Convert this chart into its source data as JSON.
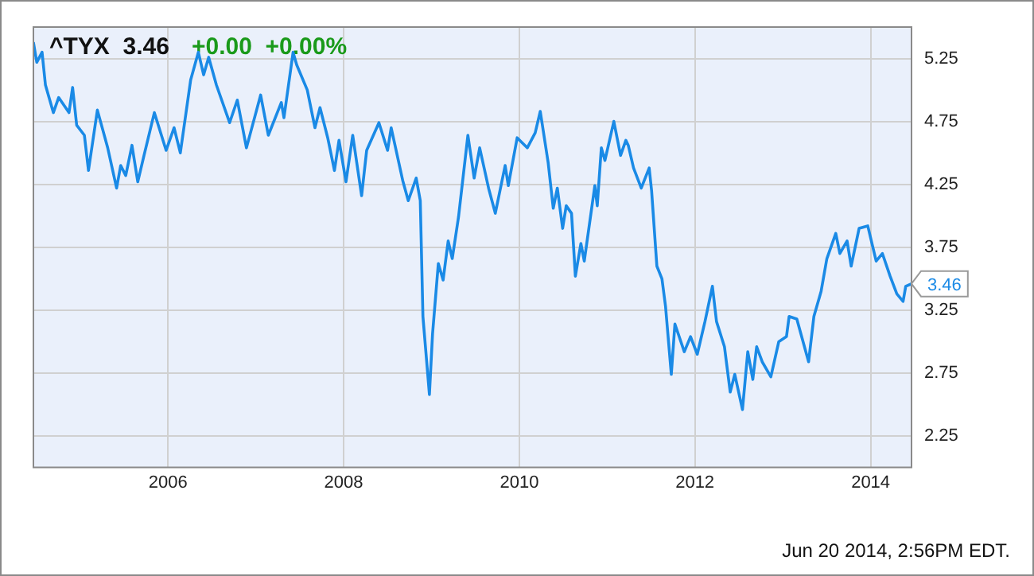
{
  "chart_data": {
    "type": "line",
    "title": "^TYX  3.46",
    "subtitle": "+0.00  +0.00%",
    "x": [
      "2004-06-20",
      "2004-07-04",
      "2004-07-26",
      "2004-08-09",
      "2004-09-11",
      "2004-10-03",
      "2004-11-15",
      "2004-11-30",
      "2004-12-17",
      "2005-01-18",
      "2005-02-04",
      "2005-03-13",
      "2005-04-25",
      "2005-06-01",
      "2005-06-18",
      "2005-07-09",
      "2005-08-04",
      "2005-08-28",
      "2005-09-23",
      "2005-11-05",
      "2005-12-24",
      "2006-01-26",
      "2006-02-21",
      "2006-04-05",
      "2006-05-07",
      "2006-05-29",
      "2006-06-19",
      "2006-07-21",
      "2006-09-14",
      "2006-10-16",
      "2006-11-23",
      "2007-01-21",
      "2007-02-22",
      "2007-04-17",
      "2007-04-28",
      "2007-06-05",
      "2007-06-20",
      "2007-08-03",
      "2007-09-04",
      "2007-09-25",
      "2007-10-27",
      "2007-11-24",
      "2007-12-13",
      "2008-01-11",
      "2008-02-08",
      "2008-03-16",
      "2008-04-06",
      "2008-05-27",
      "2008-07-02",
      "2008-07-17",
      "2008-09-03",
      "2008-09-26",
      "2008-10-29",
      "2008-11-15",
      "2008-11-26",
      "2008-12-23",
      "2009-01-05",
      "2009-01-29",
      "2009-02-18",
      "2009-03-11",
      "2009-03-28",
      "2009-04-23",
      "2009-06-01",
      "2009-06-27",
      "2009-07-20",
      "2009-08-26",
      "2009-09-23",
      "2009-11-03",
      "2009-11-16",
      "2009-12-23",
      "2010-02-03",
      "2010-03-08",
      "2010-03-29",
      "2010-05-01",
      "2010-05-22",
      "2010-06-08",
      "2010-06-30",
      "2010-07-15",
      "2010-08-06",
      "2010-08-22",
      "2010-09-14",
      "2010-09-28",
      "2010-11-11",
      "2010-11-21",
      "2010-12-08",
      "2010-12-23",
      "2011-01-29",
      "2011-02-26",
      "2011-03-20",
      "2011-03-30",
      "2011-04-21",
      "2011-05-23",
      "2011-06-25",
      "2011-07-05",
      "2011-07-27",
      "2011-08-17",
      "2011-09-01",
      "2011-09-25",
      "2011-10-10",
      "2011-11-18",
      "2011-12-14",
      "2012-01-11",
      "2012-02-12",
      "2012-03-14",
      "2012-03-31",
      "2012-05-03",
      "2012-05-27",
      "2012-06-15",
      "2012-07-17",
      "2012-08-08",
      "2012-08-29",
      "2012-09-14",
      "2012-10-07",
      "2012-11-12",
      "2012-12-15",
      "2013-01-16",
      "2013-01-27",
      "2013-02-28",
      "2013-04-18",
      "2013-05-10",
      "2013-06-09",
      "2013-07-03",
      "2013-08-09",
      "2013-08-26",
      "2013-09-25",
      "2013-10-12",
      "2013-11-14",
      "2013-12-20",
      "2014-01-24",
      "2014-02-19",
      "2014-03-23",
      "2014-04-20",
      "2014-05-16",
      "2014-05-27",
      "2014-06-20"
    ],
    "series": [
      {
        "color": "#1a8ae6",
        "values": [
          5.38,
          5.22,
          5.3,
          5.04,
          4.82,
          4.94,
          4.82,
          5.02,
          4.72,
          4.64,
          4.36,
          4.84,
          4.54,
          4.22,
          4.4,
          4.32,
          4.56,
          4.27,
          4.48,
          4.82,
          4.52,
          4.7,
          4.5,
          5.08,
          5.3,
          5.12,
          5.26,
          5.04,
          4.74,
          4.92,
          4.54,
          4.96,
          4.64,
          4.9,
          4.78,
          5.3,
          5.2,
          5.0,
          4.7,
          4.86,
          4.62,
          4.36,
          4.6,
          4.27,
          4.64,
          4.16,
          4.52,
          4.74,
          4.52,
          4.7,
          4.28,
          4.12,
          4.3,
          4.12,
          3.2,
          2.58,
          3.06,
          3.62,
          3.49,
          3.8,
          3.66,
          3.99,
          4.64,
          4.3,
          4.54,
          4.22,
          4.02,
          4.4,
          4.24,
          4.62,
          4.54,
          4.66,
          4.83,
          4.42,
          4.06,
          4.22,
          3.9,
          4.08,
          4.02,
          3.52,
          3.78,
          3.64,
          4.24,
          4.08,
          4.54,
          4.44,
          4.75,
          4.48,
          4.6,
          4.56,
          4.38,
          4.22,
          4.38,
          4.2,
          3.6,
          3.5,
          3.28,
          2.74,
          3.14,
          2.92,
          3.04,
          2.9,
          3.16,
          3.44,
          3.16,
          2.96,
          2.6,
          2.74,
          2.46,
          2.92,
          2.7,
          2.96,
          2.84,
          2.72,
          3.0,
          3.04,
          3.2,
          3.18,
          2.84,
          3.2,
          3.4,
          3.66,
          3.86,
          3.7,
          3.8,
          3.6,
          3.9,
          3.92,
          3.64,
          3.7,
          3.52,
          3.38,
          3.32,
          3.44,
          3.46
        ]
      }
    ],
    "xlim": [
      "2004-06-20",
      "2014-06-20"
    ],
    "xticks": [
      "2006",
      "2008",
      "2010",
      "2012",
      "2014"
    ],
    "ylim": [
      2.0,
      5.5
    ],
    "yticks": [
      2.25,
      2.75,
      3.25,
      3.75,
      4.25,
      4.75,
      5.25
    ],
    "grid": true,
    "legend": false,
    "marker": "none",
    "line_style": "solid",
    "annotations": [
      {
        "text": "3.46",
        "x": "2014-06-20",
        "y": 3.46
      },
      "Jun 20 2014, 2:56PM EDT."
    ]
  }
}
